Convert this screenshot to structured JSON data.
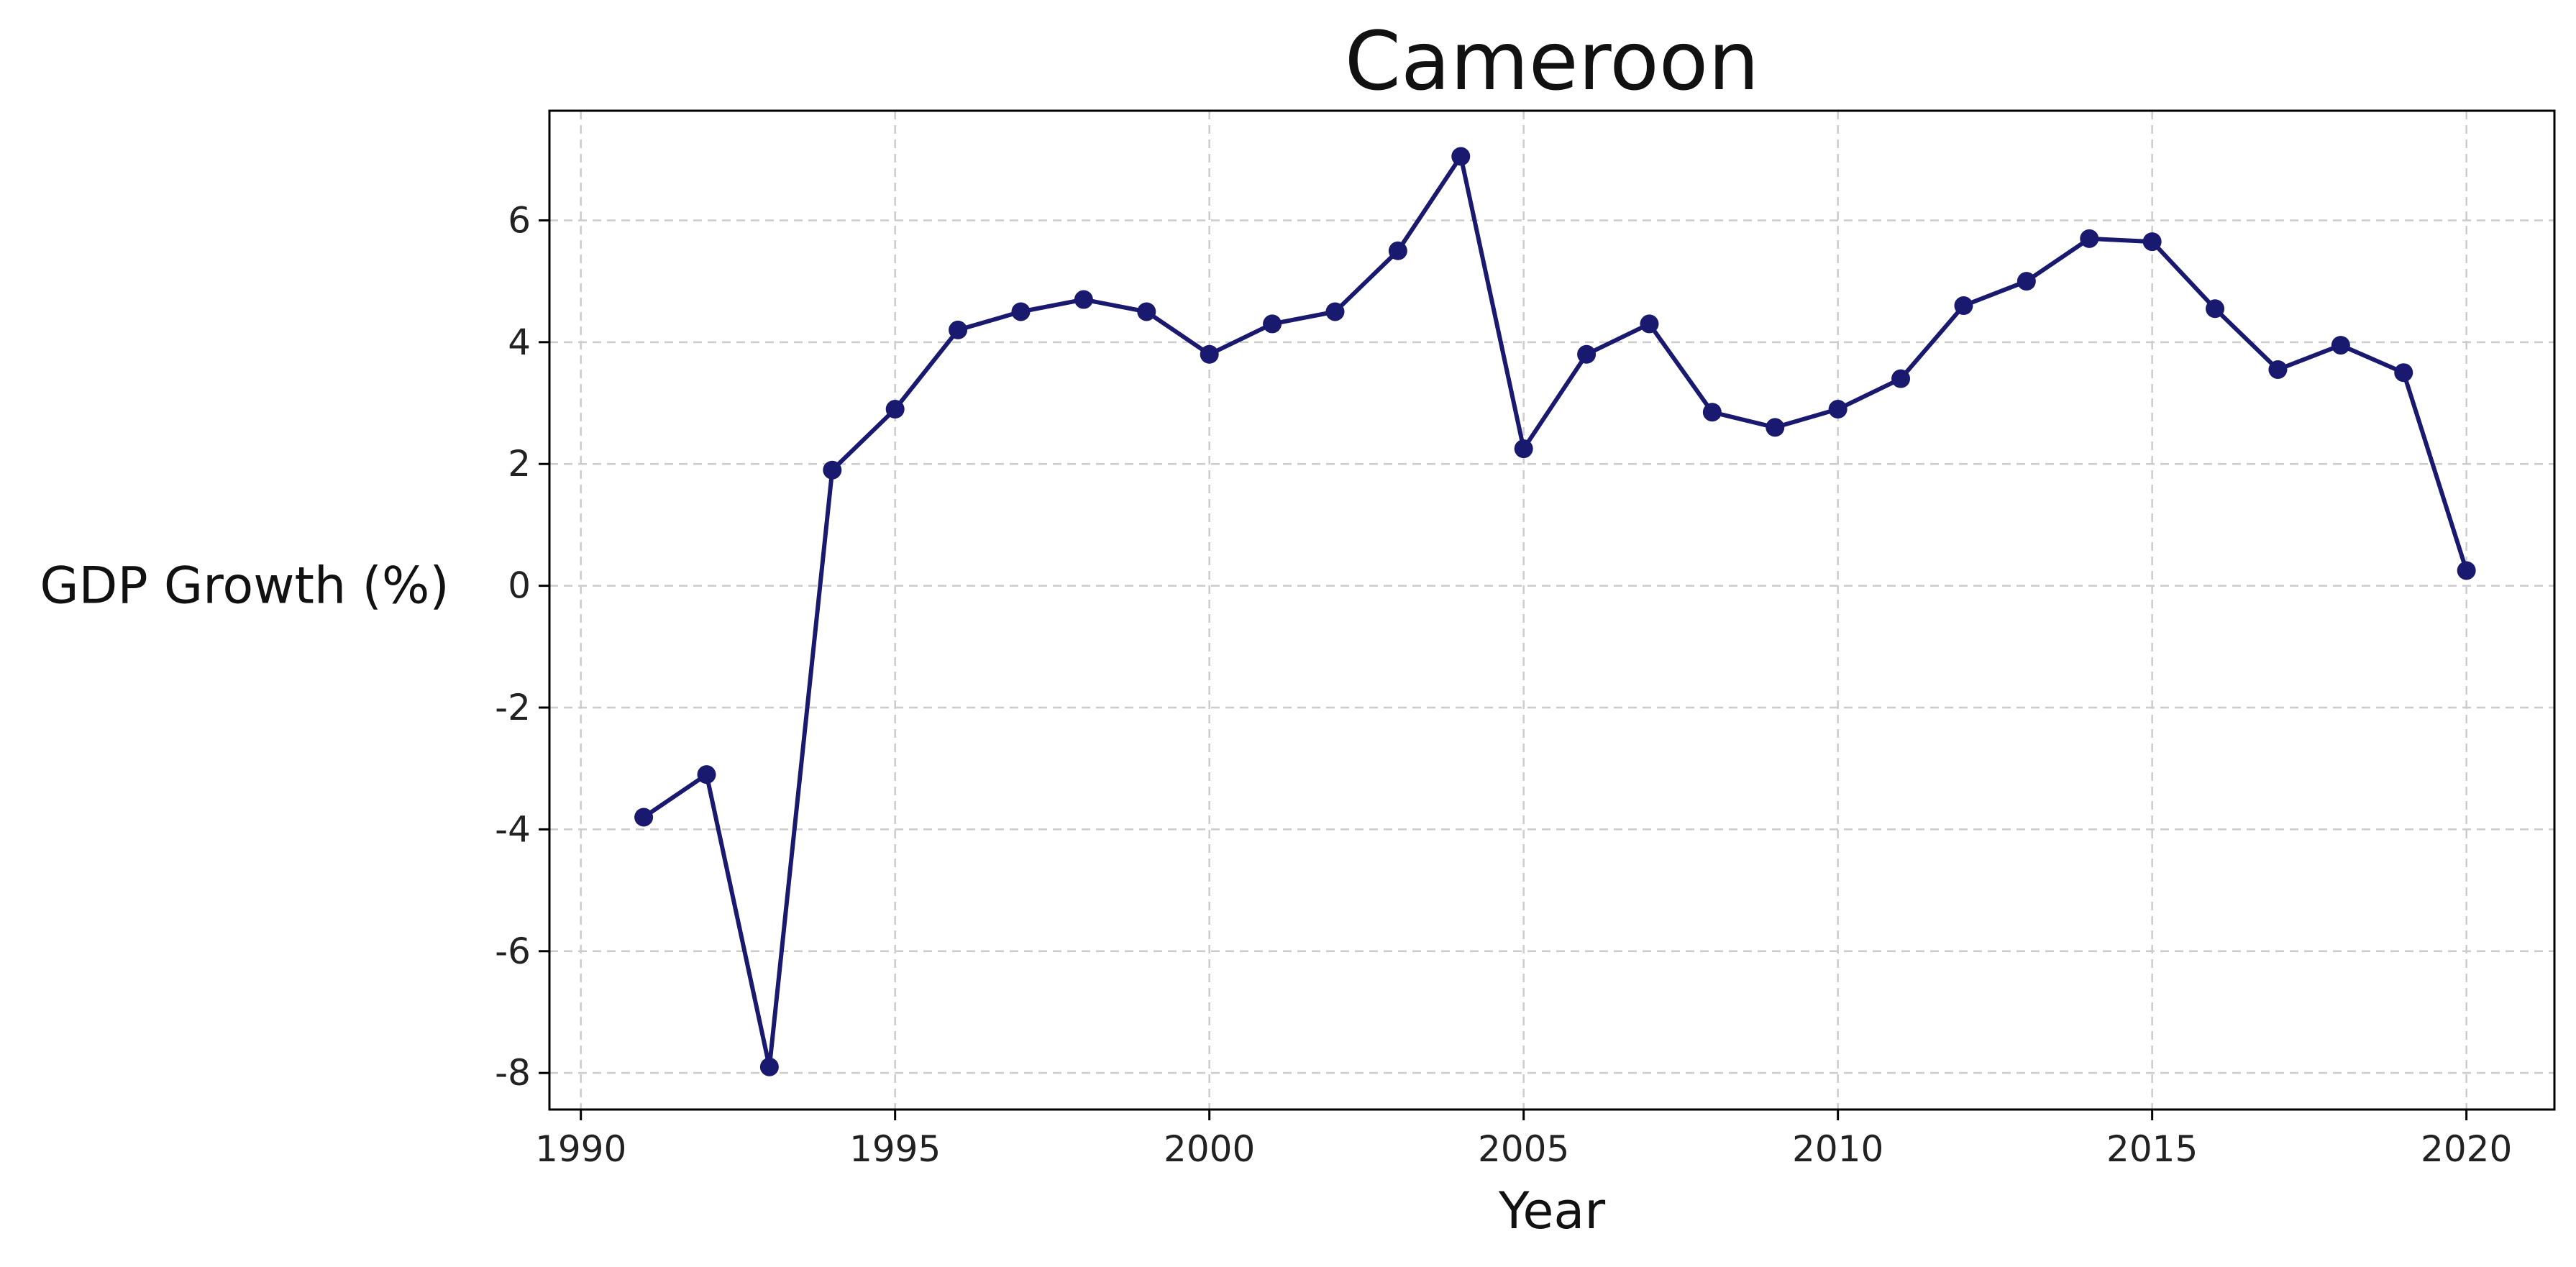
{
  "chart_data": {
    "type": "line",
    "title": "Cameroon",
    "xlabel": "Year",
    "ylabel": "GDP Growth (%)",
    "xlim": [
      1989.5,
      2021.4
    ],
    "ylim": [
      -8.6,
      7.8
    ],
    "xticks": [
      1990,
      1995,
      2000,
      2005,
      2010,
      2015,
      2020
    ],
    "yticks": [
      -8,
      -6,
      -4,
      -2,
      0,
      2,
      4,
      6
    ],
    "grid": true,
    "legend": "none",
    "colors": {
      "line": "#191970",
      "marker": "#191970",
      "grid": "#cccccc"
    },
    "series": [
      {
        "x": [
          1991,
          1992,
          1993,
          1994,
          1995,
          1996,
          1997,
          1998,
          1999,
          2000,
          2001,
          2002,
          2003,
          2004,
          2005,
          2006,
          2007,
          2008,
          2009,
          2010,
          2011,
          2012,
          2013,
          2014,
          2015,
          2016,
          2017,
          2018,
          2019,
          2020
        ],
        "y": [
          -3.8,
          -3.1,
          -7.9,
          1.9,
          2.9,
          4.2,
          4.5,
          4.7,
          4.5,
          3.8,
          4.3,
          4.5,
          5.5,
          7.05,
          2.25,
          3.8,
          4.3,
          2.85,
          2.6,
          2.9,
          3.4,
          4.6,
          5.0,
          5.7,
          5.65,
          4.55,
          3.55,
          3.95,
          3.5,
          0.25
        ]
      }
    ]
  }
}
